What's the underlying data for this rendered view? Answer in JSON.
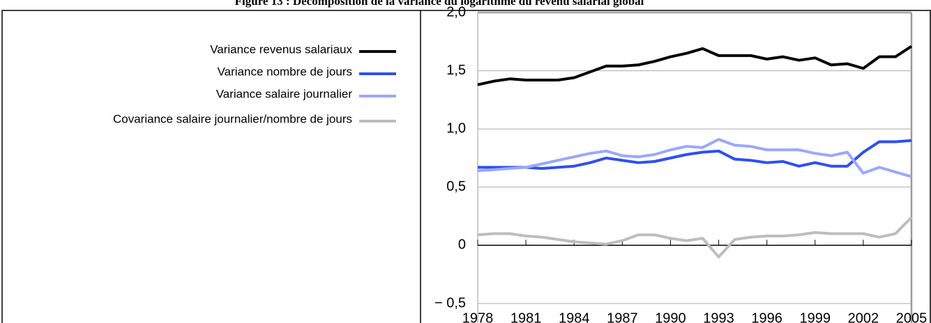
{
  "chart_data": {
    "type": "line",
    "title": "Figure 13 : Décomposition de la variance du logarithme du revenu salarial global",
    "x": [
      1978,
      1979,
      1980,
      1981,
      1982,
      1983,
      1984,
      1985,
      1986,
      1987,
      1988,
      1989,
      1990,
      1991,
      1992,
      1993,
      1994,
      1995,
      1996,
      1997,
      1998,
      1999,
      2000,
      2001,
      2002,
      2003,
      2004,
      2005
    ],
    "series": [
      {
        "name": "Variance revenus salariaux",
        "color": "#000000",
        "values": [
          1.38,
          1.41,
          1.43,
          1.42,
          1.42,
          1.42,
          1.44,
          1.49,
          1.54,
          1.54,
          1.55,
          1.58,
          1.62,
          1.65,
          1.69,
          1.63,
          1.63,
          1.63,
          1.6,
          1.62,
          1.59,
          1.61,
          1.55,
          1.56,
          1.52,
          1.62,
          1.62,
          1.71
        ]
      },
      {
        "name": "Variance nombre de jours",
        "color": "#2f4ff0",
        "values": [
          0.67,
          0.67,
          0.67,
          0.67,
          0.66,
          0.67,
          0.68,
          0.71,
          0.75,
          0.73,
          0.71,
          0.72,
          0.75,
          0.78,
          0.8,
          0.81,
          0.74,
          0.73,
          0.71,
          0.72,
          0.68,
          0.71,
          0.68,
          0.68,
          0.8,
          0.89,
          0.89,
          0.9
        ]
      },
      {
        "name": "Variance salaire journalier",
        "color": "#9aa8fb",
        "values": [
          0.64,
          0.65,
          0.66,
          0.67,
          0.7,
          0.73,
          0.76,
          0.79,
          0.81,
          0.77,
          0.76,
          0.78,
          0.82,
          0.85,
          0.84,
          0.91,
          0.86,
          0.85,
          0.82,
          0.82,
          0.82,
          0.79,
          0.77,
          0.8,
          0.62,
          0.67,
          0.63,
          0.59
        ]
      },
      {
        "name": "Covariance salaire journalier/nombre de jours",
        "color": "#bdbdbd",
        "values": [
          0.09,
          0.1,
          0.1,
          0.08,
          0.07,
          0.05,
          0.03,
          0.02,
          0.01,
          0.04,
          0.09,
          0.09,
          0.06,
          0.04,
          0.06,
          -0.1,
          0.05,
          0.07,
          0.08,
          0.08,
          0.09,
          0.11,
          0.1,
          0.1,
          0.1,
          0.07,
          0.1,
          0.24
        ]
      }
    ],
    "xlim": [
      1978,
      2005
    ],
    "xticks": [
      1978,
      1981,
      1984,
      1987,
      1990,
      1993,
      1996,
      1999,
      2002,
      2005
    ],
    "ylim": [
      -0.5,
      2.0
    ],
    "yticks": [
      {
        "value": -0.5,
        "label": "− 0,5"
      },
      0,
      {
        "value": 0.5,
        "label": "0,5"
      },
      {
        "value": 1.0,
        "label": "1,0"
      },
      {
        "value": 1.5,
        "label": "1,5"
      },
      {
        "value": 2.0,
        "label": "2,0"
      }
    ],
    "grid": true
  }
}
